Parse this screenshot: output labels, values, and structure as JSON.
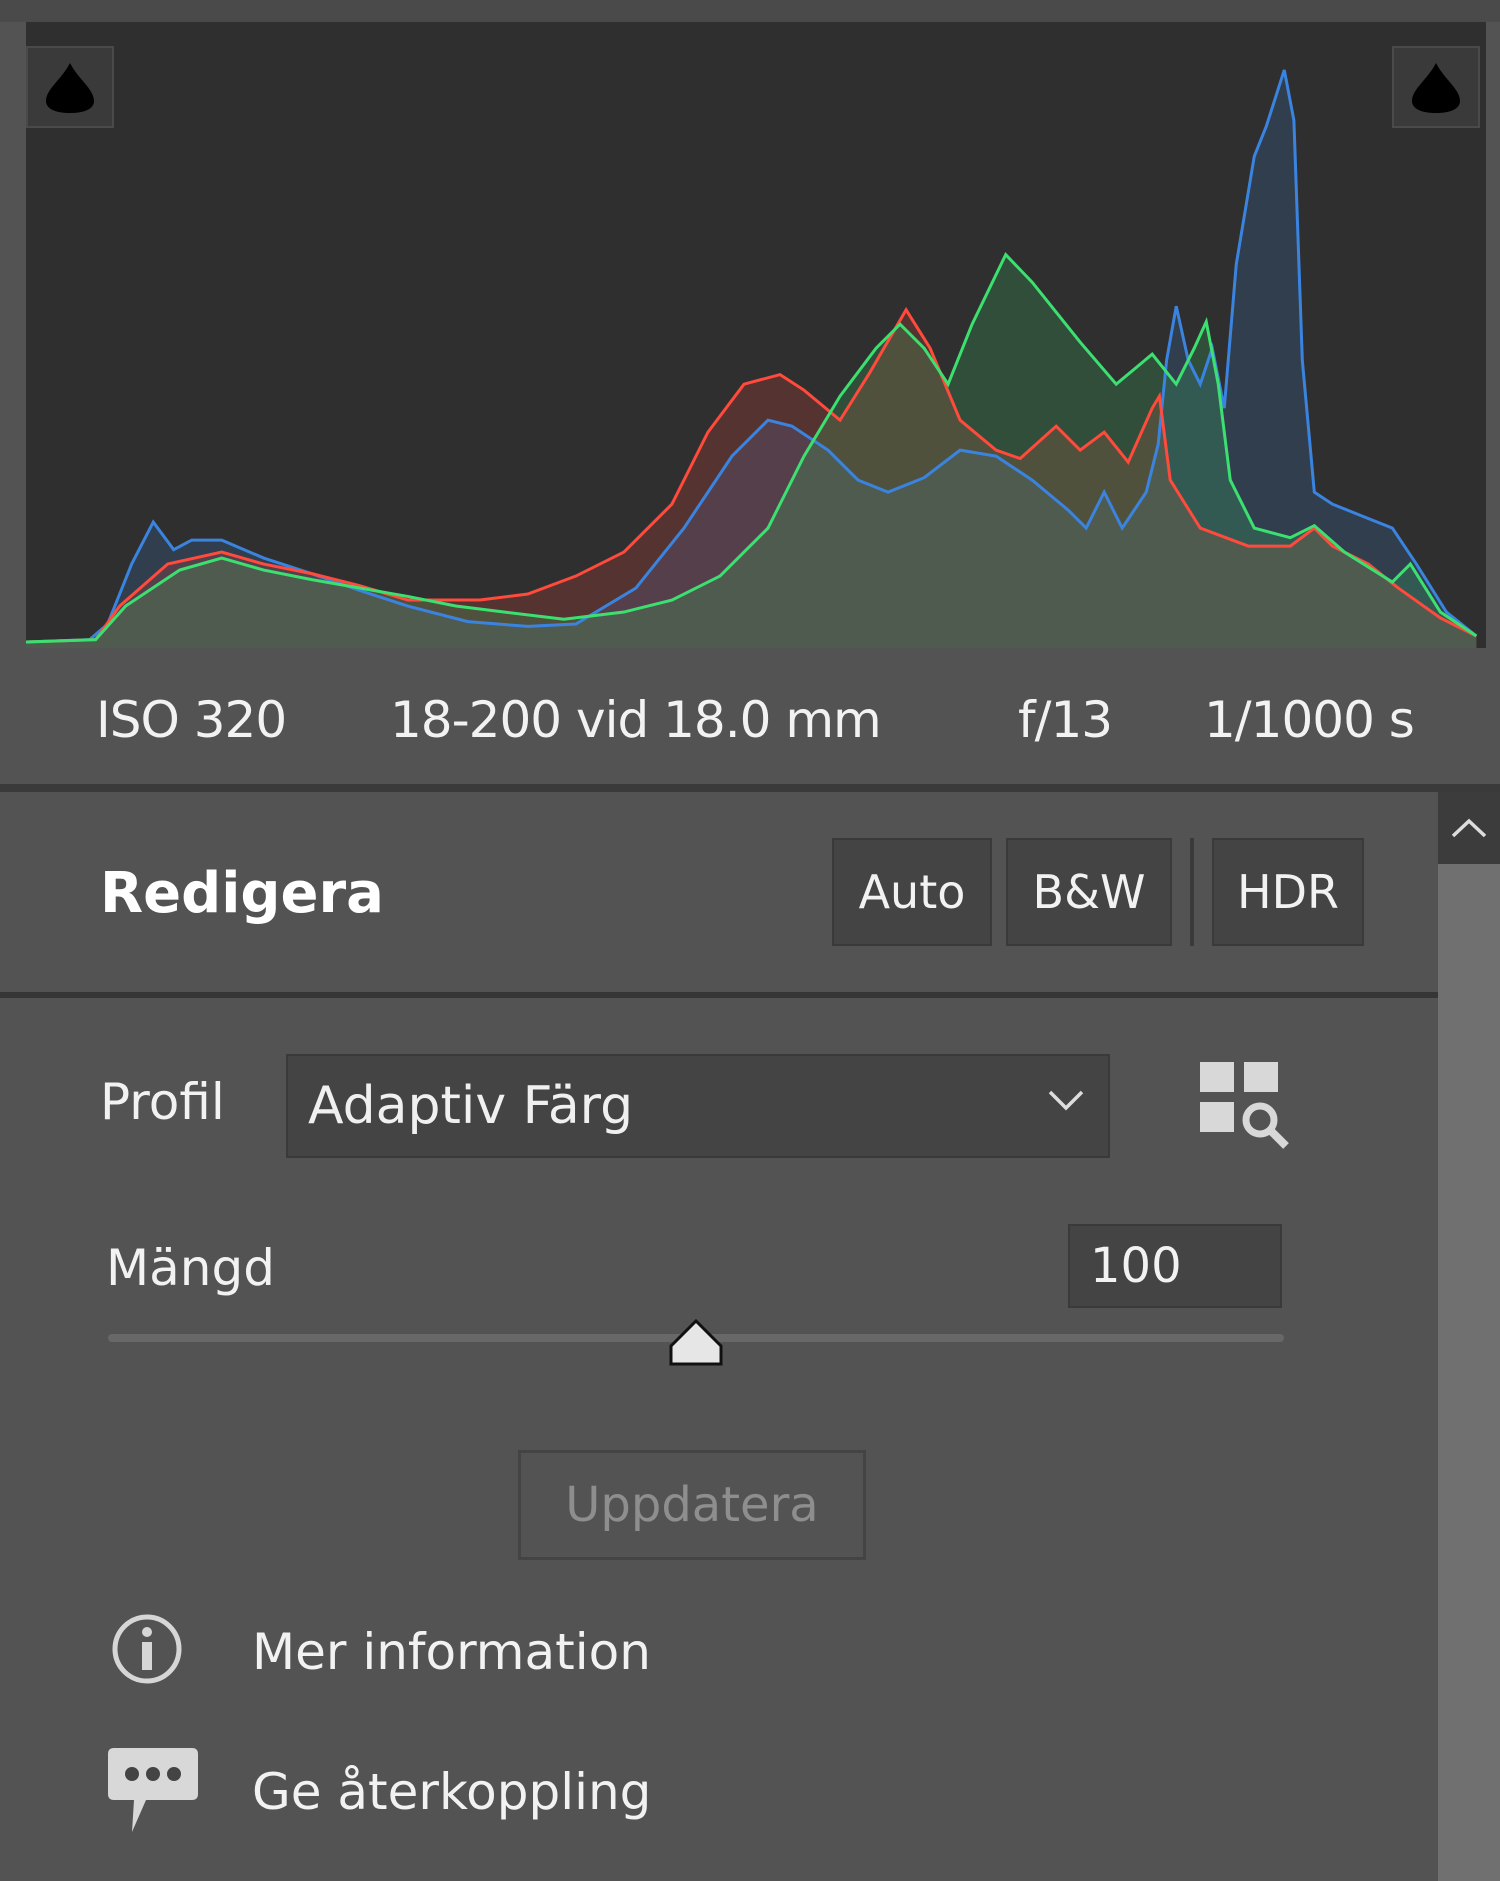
{
  "histogram": {
    "channels": [
      "red",
      "green",
      "blue"
    ],
    "colors": {
      "red": "#ff4a3c",
      "green": "#3ce070",
      "blue": "#3a84e0"
    },
    "shadow_clipping_icon": "droplet-icon",
    "highlight_clipping_icon": "droplet-icon"
  },
  "metadata": {
    "iso": "ISO 320",
    "lens": "18-200 vid 18.0 mm",
    "aperture": "f/13",
    "shutter": "1/1000 s"
  },
  "edit": {
    "title": "Redigera",
    "buttons": {
      "auto": "Auto",
      "bw": "B&W",
      "hdr": "HDR"
    },
    "profile_label": "Profil",
    "profile_value": "Adaptiv Färg",
    "amount_label": "Mängd",
    "amount_value": "100",
    "amount_slider_percent": 50,
    "update_label": "Uppdatera",
    "more_info_label": "Mer information",
    "feedback_label": "Ge återkoppling"
  }
}
